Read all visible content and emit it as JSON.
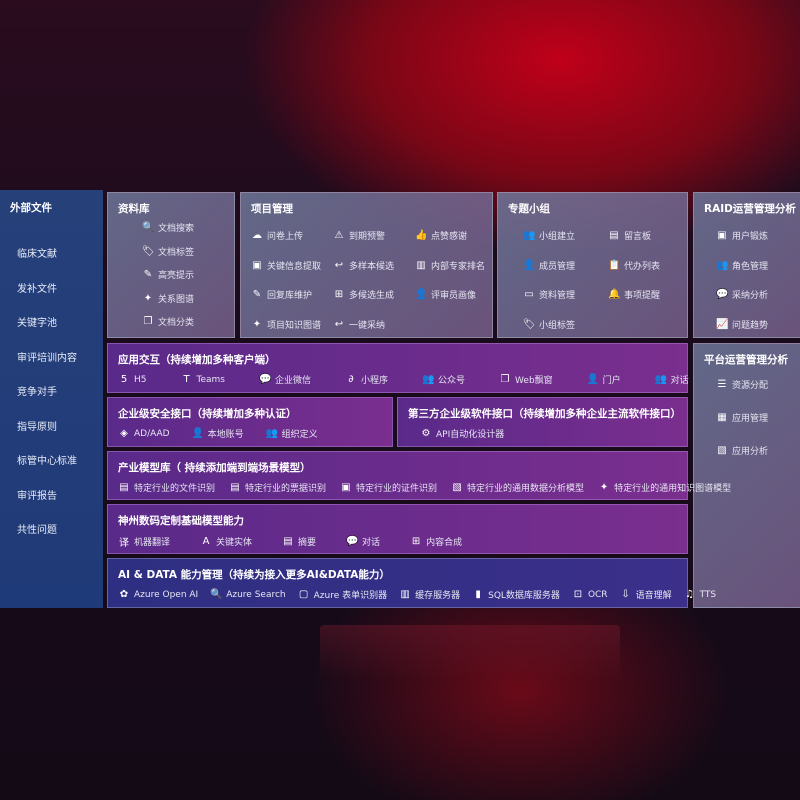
{
  "sidebar": {
    "title": "外部文件",
    "items": [
      "临床文献",
      "发补文件",
      "关键字池",
      "审评培训内容",
      "竞争对手",
      "指导原则",
      "标管中心标准",
      "审评报告",
      "共性问题"
    ]
  },
  "library": {
    "title": "资料库",
    "items": [
      {
        "icon": "document-search-icon",
        "g": "🔍",
        "label": "文档搜索"
      },
      {
        "icon": "tag-icon",
        "g": "🏷",
        "label": "文档标签"
      },
      {
        "icon": "pen-icon",
        "g": "✎",
        "label": "高亮提示"
      },
      {
        "icon": "graph-icon",
        "g": "✦",
        "label": "关系图谱"
      },
      {
        "icon": "document-copy-icon",
        "g": "❐",
        "label": "文档分类"
      }
    ]
  },
  "project": {
    "title": "项目管理",
    "items": [
      {
        "icon": "cloud-upload-icon",
        "g": "☁",
        "label": "问卷上传"
      },
      {
        "icon": "alarm-icon",
        "g": "⚠",
        "label": "到期预警"
      },
      {
        "icon": "thumbs-up-icon",
        "g": "👍",
        "label": "点赞感谢"
      },
      {
        "icon": "window-icon",
        "g": "▣",
        "label": "关键信息提取"
      },
      {
        "icon": "reply-icon",
        "g": "↩",
        "label": "多样本候选"
      },
      {
        "icon": "ranking-icon",
        "g": "▥",
        "label": "内部专家排名"
      },
      {
        "icon": "edit-icon",
        "g": "✎",
        "label": "回复库维护"
      },
      {
        "icon": "puzzle-icon",
        "g": "⊞",
        "label": "多候选生成"
      },
      {
        "icon": "user-icon",
        "g": "👤",
        "label": "评审员画像"
      },
      {
        "icon": "graph-icon",
        "g": "✦",
        "label": "项目知识图谱"
      },
      {
        "icon": "reply-icon",
        "g": "↩",
        "label": "一键采纳"
      }
    ]
  },
  "group": {
    "title": "专题小组",
    "items": [
      {
        "icon": "users-icon",
        "g": "👥",
        "label": "小组建立"
      },
      {
        "icon": "bbs-icon",
        "g": "▤",
        "label": "留言板"
      },
      {
        "icon": "user-add-icon",
        "g": "👤",
        "label": "成员管理"
      },
      {
        "icon": "clipboard-icon",
        "g": "📋",
        "label": "代办列表"
      },
      {
        "icon": "folder-icon",
        "g": "▭",
        "label": "资料管理"
      },
      {
        "icon": "bell-icon",
        "g": "🔔",
        "label": "事项提醒"
      },
      {
        "icon": "tag-icon",
        "g": "🏷",
        "label": "小组标签"
      }
    ]
  },
  "raid": {
    "title": "RAID运营管理分析",
    "items": [
      {
        "icon": "id-card-icon",
        "g": "▣",
        "label": "用户锻炼"
      },
      {
        "icon": "users-icon",
        "g": "👥",
        "label": "角色管理"
      },
      {
        "icon": "qa-icon",
        "g": "💬",
        "label": "采纳分析"
      },
      {
        "icon": "trend-icon",
        "g": "📈",
        "label": "问题趋势"
      }
    ]
  },
  "platform": {
    "title": "平台运营管理分析",
    "items": [
      {
        "icon": "list-icon",
        "g": "☰",
        "label": "资源分配"
      },
      {
        "icon": "apps-icon",
        "g": "▦",
        "label": "应用管理"
      },
      {
        "icon": "chart-icon",
        "g": "▧",
        "label": "应用分析"
      }
    ]
  },
  "interaction": {
    "title": "应用交互（持续增加多种客户端）",
    "items": [
      {
        "icon": "html5-icon",
        "g": "5",
        "label": "H5"
      },
      {
        "icon": "teams-icon",
        "g": "T",
        "label": "Teams"
      },
      {
        "icon": "wechat-icon",
        "g": "💬",
        "label": "企业微信"
      },
      {
        "icon": "miniprogram-icon",
        "g": "∂",
        "label": "小程序"
      },
      {
        "icon": "users-icon",
        "g": "👥",
        "label": "公众号"
      },
      {
        "icon": "window-icon",
        "g": "❐",
        "label": "Web飘窗"
      },
      {
        "icon": "portal-icon",
        "g": "👤",
        "label": "门户"
      },
      {
        "icon": "chat-users-icon",
        "g": "👥",
        "label": "对话"
      }
    ]
  },
  "security": {
    "title": "企业级安全接口（持续增加多种认证）",
    "items": [
      {
        "icon": "diamond-icon",
        "g": "◈",
        "label": "AD/AAD"
      },
      {
        "icon": "account-icon",
        "g": "👤",
        "label": "本地账号"
      },
      {
        "icon": "org-icon",
        "g": "👥",
        "label": "组织定义"
      }
    ]
  },
  "thirdparty": {
    "title": "第三方企业级软件接口（持续增加多种企业主流软件接口）",
    "items": [
      {
        "icon": "gear-icon",
        "g": "⚙",
        "label": "API自动化设计器"
      }
    ]
  },
  "industry": {
    "title": "产业模型库（ 持续添加端到端场景模型）",
    "items": [
      {
        "icon": "document-icon",
        "g": "▤",
        "label": "特定行业的文件识别"
      },
      {
        "icon": "receipt-icon",
        "g": "▤",
        "label": "特定行业的票据识别"
      },
      {
        "icon": "id-card-icon",
        "g": "▣",
        "label": "特定行业的证件识别"
      },
      {
        "icon": "data-icon",
        "g": "▧",
        "label": "特定行业的通用数据分析模型"
      },
      {
        "icon": "graph-icon",
        "g": "✦",
        "label": "特定行业的通用知识图谱模型"
      }
    ]
  },
  "basemodel": {
    "title": "神州数码定制基础模型能力",
    "items": [
      {
        "icon": "translate-icon",
        "g": "译",
        "label": "机器翻译"
      },
      {
        "icon": "entity-icon",
        "g": "A",
        "label": "关键实体"
      },
      {
        "icon": "summary-icon",
        "g": "▤",
        "label": "摘要"
      },
      {
        "icon": "chat-icon",
        "g": "💬",
        "label": "对话"
      },
      {
        "icon": "compose-icon",
        "g": "⊞",
        "label": "内容合成"
      }
    ]
  },
  "aidata": {
    "title": "AI & DATA 能力管理（持续为接入更多AI&DATA能力）",
    "items": [
      {
        "icon": "openai-icon",
        "g": "✿",
        "label": "Azure Open AI"
      },
      {
        "icon": "search-icon",
        "g": "🔍",
        "label": "Azure Search"
      },
      {
        "icon": "form-icon",
        "g": "▢",
        "label": "Azure 表单识别器"
      },
      {
        "icon": "cache-icon",
        "g": "▥",
        "label": "缓存服务器"
      },
      {
        "icon": "database-icon",
        "g": "▮",
        "label": "SQL数据库服务器"
      },
      {
        "icon": "ocr-icon",
        "g": "⊡",
        "label": "OCR"
      },
      {
        "icon": "speech-icon",
        "g": "⇩",
        "label": "语音理解"
      },
      {
        "icon": "tts-icon",
        "g": "♫",
        "label": "TTS"
      }
    ]
  }
}
